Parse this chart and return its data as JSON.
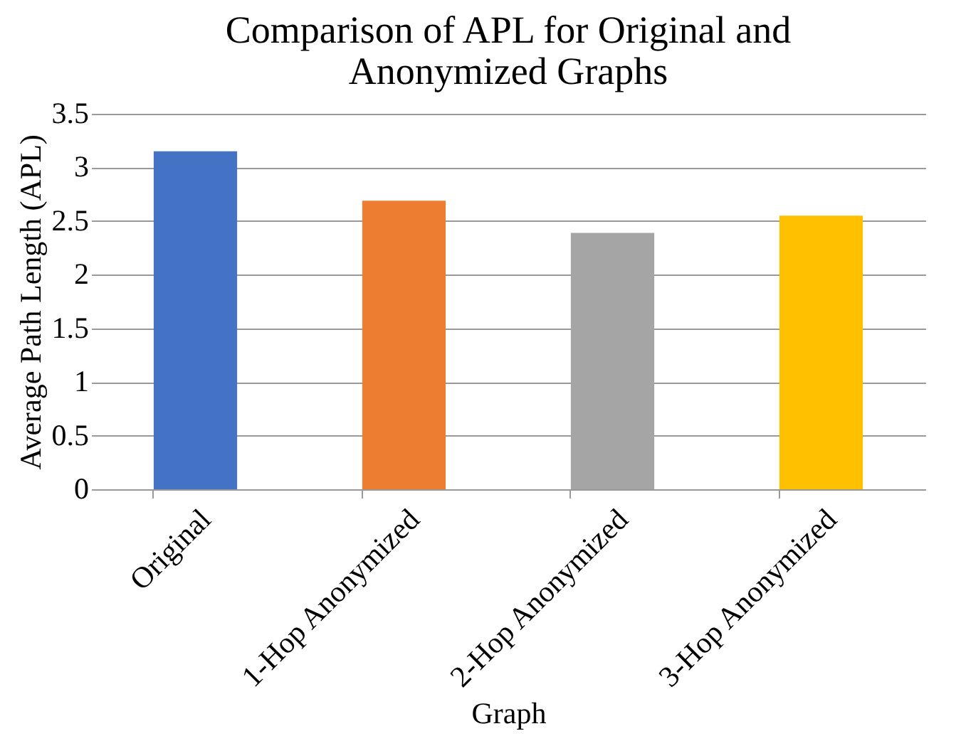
{
  "chart_data": {
    "type": "bar",
    "title": [
      "Comparison of APL for Original and",
      "Anonymized Graphs"
    ],
    "xlabel": "Graph",
    "ylabel": "Average Path Length (APL)",
    "categories": [
      "Original",
      "1-Hop Anonymized",
      "2-Hop Anonymized",
      "3-Hop Anonymized"
    ],
    "values": [
      3.15,
      2.69,
      2.39,
      2.55
    ],
    "colors": [
      "#4472c4",
      "#ed7d31",
      "#a5a5a5",
      "#ffc000"
    ],
    "ylim": [
      0,
      3.5
    ],
    "yticks": [
      0,
      0.5,
      1,
      1.5,
      2,
      2.5,
      3,
      3.5
    ],
    "grid": "y"
  }
}
